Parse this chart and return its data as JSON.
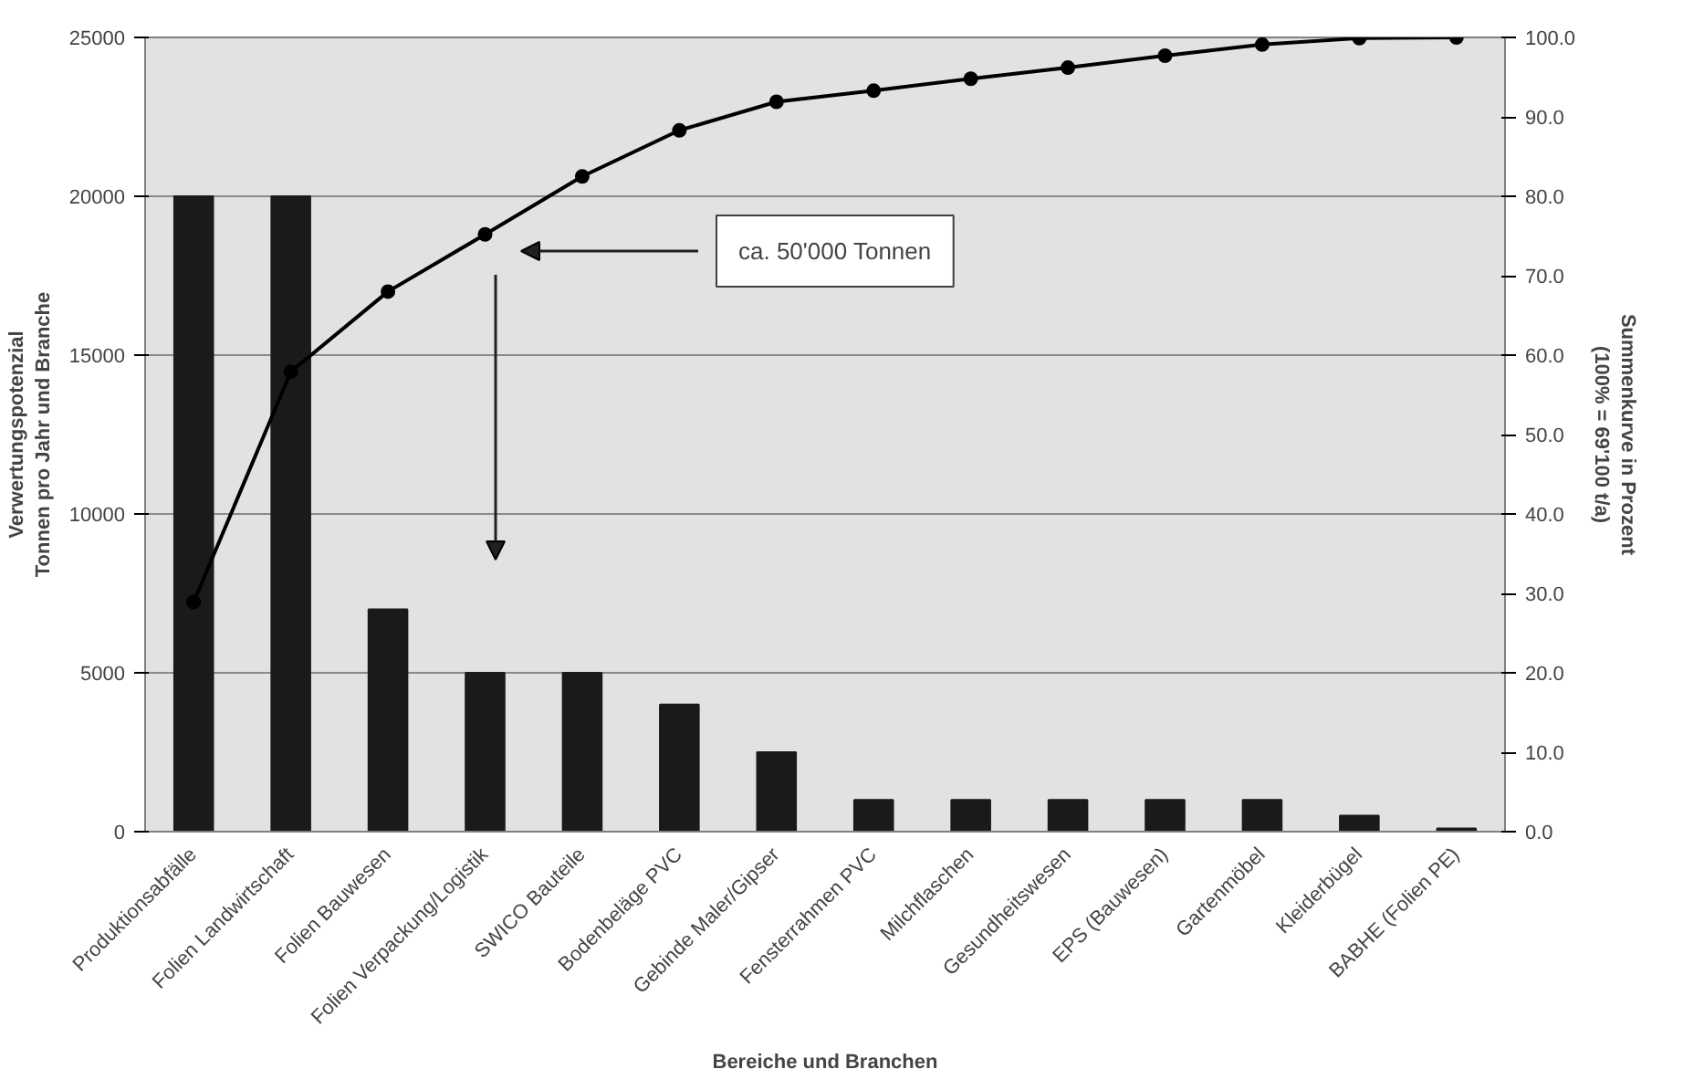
{
  "chart_data": {
    "type": "bar",
    "categories": [
      "Produktionsabfälle",
      "Folien Landwirtschaft",
      "Folien Bauwesen",
      "Folien Verpackung/Logistik",
      "SWICO Bauteile",
      "Bodenbeläge PVC",
      "Gebinde Maler/Gipser",
      "Fensterrahmen PVC",
      "Milchflaschen",
      "Gesundheitswesen",
      "EPS (Bauwesen)",
      "Gartenmöbel",
      "Kleiderbügel",
      "BABHE (Folien PE)"
    ],
    "series": [
      {
        "color": "#1a1a1a",
        "values": [
          20000,
          20000,
          7000,
          5000,
          5000,
          4000,
          2500,
          1000,
          1000,
          1000,
          1000,
          1000,
          500,
          100
        ]
      },
      {
        "type": "line",
        "axis": "y2",
        "color": "#000000",
        "marker": "circle",
        "values": [
          28.9,
          57.9,
          68.0,
          75.2,
          82.5,
          88.3,
          91.9,
          93.3,
          94.8,
          96.2,
          97.7,
          99.1,
          99.9,
          100.0
        ]
      }
    ],
    "xlabel": "Bereiche und Branchen",
    "ylabel": "Verwertungspotenzial\nTonnen pro Jahr und Branche",
    "y2label": "Summenkurve in Prozent\n(100% = 69'100 t/a)",
    "ylim": [
      0,
      25000
    ],
    "yticks": [
      0,
      5000,
      10000,
      15000,
      20000,
      25000
    ],
    "y2lim": [
      0,
      100
    ],
    "y2ticks": [
      {
        "value": 0,
        "label": "0.0"
      },
      {
        "value": 10,
        "label": "10.0"
      },
      {
        "value": 20,
        "label": "20.0"
      },
      {
        "value": 30,
        "label": "30.0"
      },
      {
        "value": 40,
        "label": "40.0"
      },
      {
        "value": 50,
        "label": "50.0"
      },
      {
        "value": 60,
        "label": "60.0"
      },
      {
        "value": 70,
        "label": "70.0"
      },
      {
        "value": 80,
        "label": "80.0"
      },
      {
        "value": 90,
        "label": "90.0"
      },
      {
        "value": 100,
        "label": "100.0"
      }
    ],
    "grid": "y",
    "annotations": [
      "ca. 50'000 Tonnen"
    ]
  }
}
